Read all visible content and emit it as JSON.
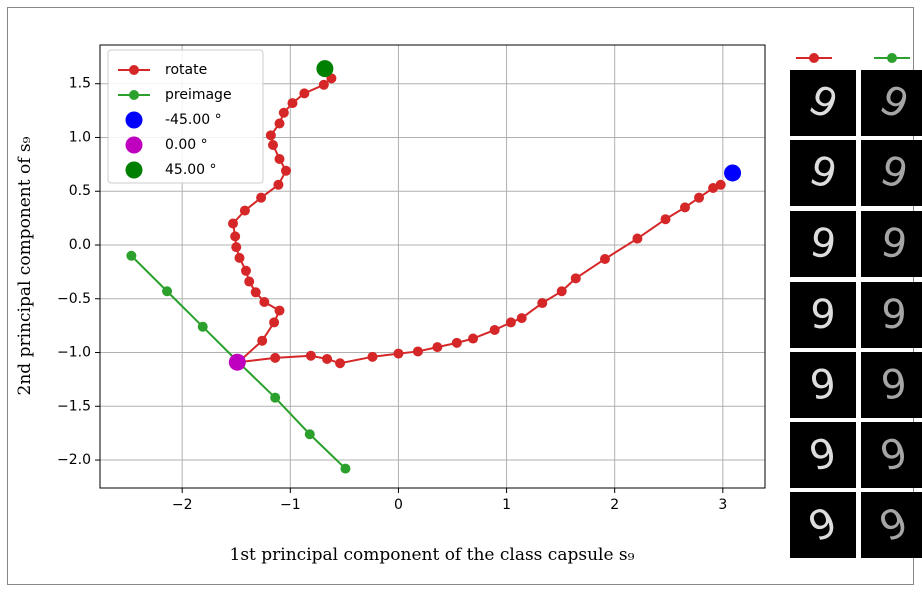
{
  "chart_data": {
    "type": "line",
    "xlabel": "1st principal component of the class capsule s₉",
    "ylabel": "2nd principal component of s₉",
    "xlim": [
      -2.76,
      3.39
    ],
    "ylim": [
      -2.26,
      1.86
    ],
    "xticks": [
      {
        "value": -2,
        "label": "−2"
      },
      {
        "value": -1,
        "label": "−1"
      },
      0,
      1,
      2,
      3
    ],
    "yticks": [
      {
        "value": 1.5,
        "label": "1.5"
      },
      {
        "value": 1.0,
        "label": "1.0"
      },
      {
        "value": 0.5,
        "label": "0.5"
      },
      {
        "value": 0.0,
        "label": "0.0"
      },
      {
        "value": -0.5,
        "label": "−0.5"
      },
      {
        "value": -1.0,
        "label": "−1.0"
      },
      {
        "value": -1.5,
        "label": "−1.5"
      },
      {
        "value": -2.0,
        "label": "−2.0"
      }
    ],
    "grid": true,
    "legend": "upper left",
    "series": [
      {
        "name": "rotate",
        "color": "#d62728",
        "style": "line",
        "x": [
          2.98,
          2.91,
          2.78,
          2.65,
          2.47,
          2.21,
          1.91,
          1.64,
          1.51,
          1.33,
          1.14,
          1.04,
          0.89,
          0.69,
          0.54,
          0.36,
          0.18,
          0.0,
          -0.24,
          -0.54,
          -0.66,
          -0.81,
          -1.14,
          -1.48,
          -1.26,
          -1.15,
          -1.1,
          -1.24,
          -1.32,
          -1.38,
          -1.41,
          -1.47,
          -1.5,
          -1.51,
          -1.53,
          -1.42,
          -1.27,
          -1.11,
          -1.04,
          -1.1,
          -1.16,
          -1.18,
          -1.1,
          -1.06,
          -0.98,
          -0.87,
          -0.69,
          -0.62
        ],
        "values": [
          0.56,
          0.53,
          0.44,
          0.35,
          0.24,
          0.06,
          -0.13,
          -0.31,
          -0.43,
          -0.54,
          -0.68,
          -0.72,
          -0.79,
          -0.87,
          -0.91,
          -0.95,
          -0.99,
          -1.01,
          -1.04,
          -1.1,
          -1.06,
          -1.03,
          -1.05,
          -1.09,
          -0.89,
          -0.72,
          -0.61,
          -0.53,
          -0.44,
          -0.34,
          -0.24,
          -0.12,
          -0.02,
          0.08,
          0.2,
          0.32,
          0.44,
          0.56,
          0.69,
          0.8,
          0.93,
          1.02,
          1.13,
          1.23,
          1.32,
          1.41,
          1.49,
          1.55
        ]
      },
      {
        "name": "preimage",
        "color": "#2ca02c",
        "style": "line",
        "x": [
          -2.47,
          -2.14,
          -1.81,
          -1.49,
          -1.14,
          -0.82,
          -0.49
        ],
        "values": [
          -0.1,
          -0.43,
          -0.76,
          -1.08,
          -1.42,
          -1.76,
          -2.08
        ]
      },
      {
        "name": "-45.00 °",
        "color": "#0000ff",
        "style": "marker",
        "x": [
          3.09
        ],
        "values": [
          0.67
        ]
      },
      {
        "name": "0.00 °",
        "color": "#bf00bf",
        "style": "marker",
        "x": [
          -1.49
        ],
        "values": [
          -1.09
        ]
      },
      {
        "name": "45.00 °",
        "color": "#008000",
        "style": "marker",
        "x": [
          -0.68
        ],
        "values": [
          1.64
        ]
      }
    ]
  }
}
